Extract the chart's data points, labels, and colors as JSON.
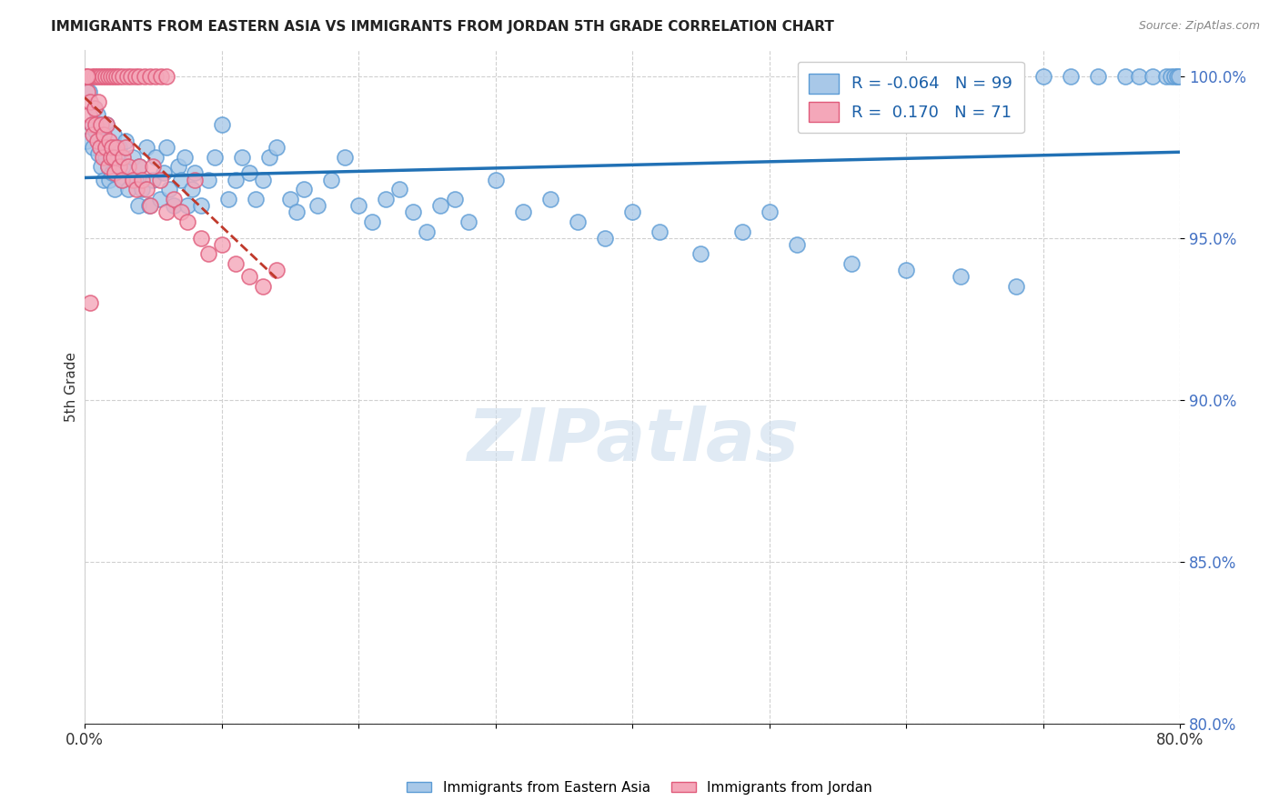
{
  "title": "IMMIGRANTS FROM EASTERN ASIA VS IMMIGRANTS FROM JORDAN 5TH GRADE CORRELATION CHART",
  "source": "Source: ZipAtlas.com",
  "ylabel": "5th Grade",
  "xlim": [
    0.0,
    0.8
  ],
  "ylim": [
    0.8,
    1.008
  ],
  "x_ticks": [
    0.0,
    0.1,
    0.2,
    0.3,
    0.4,
    0.5,
    0.6,
    0.7,
    0.8
  ],
  "x_tick_labels": [
    "0.0%",
    "",
    "",
    "",
    "",
    "",
    "",
    "",
    "80.0%"
  ],
  "y_ticks": [
    0.8,
    0.85,
    0.9,
    0.95,
    1.0
  ],
  "blue_color": "#a8c8e8",
  "blue_edge": "#5b9bd5",
  "pink_color": "#f4a7b9",
  "pink_edge": "#e05a7a",
  "trend_blue": "#2171b5",
  "trend_pink": "#c0392b",
  "blue_R": -0.064,
  "blue_N": 99,
  "pink_R": 0.17,
  "pink_N": 71,
  "watermark": "ZIPatlas",
  "blue_x": [
    0.001,
    0.003,
    0.005,
    0.006,
    0.007,
    0.008,
    0.009,
    0.01,
    0.011,
    0.012,
    0.013,
    0.014,
    0.015,
    0.016,
    0.017,
    0.018,
    0.019,
    0.02,
    0.021,
    0.022,
    0.023,
    0.025,
    0.027,
    0.028,
    0.03,
    0.032,
    0.035,
    0.037,
    0.039,
    0.04,
    0.042,
    0.045,
    0.047,
    0.05,
    0.052,
    0.055,
    0.058,
    0.06,
    0.062,
    0.065,
    0.068,
    0.07,
    0.073,
    0.075,
    0.078,
    0.08,
    0.085,
    0.09,
    0.095,
    0.1,
    0.105,
    0.11,
    0.115,
    0.12,
    0.125,
    0.13,
    0.135,
    0.14,
    0.15,
    0.155,
    0.16,
    0.17,
    0.18,
    0.19,
    0.2,
    0.21,
    0.22,
    0.23,
    0.24,
    0.25,
    0.26,
    0.27,
    0.28,
    0.3,
    0.32,
    0.34,
    0.36,
    0.38,
    0.4,
    0.42,
    0.45,
    0.48,
    0.5,
    0.52,
    0.56,
    0.6,
    0.64,
    0.68,
    0.7,
    0.72,
    0.74,
    0.76,
    0.77,
    0.78,
    0.79,
    0.793,
    0.796,
    0.798,
    0.799
  ],
  "blue_y": [
    0.98,
    0.995,
    0.985,
    0.978,
    0.99,
    0.983,
    0.988,
    0.976,
    0.985,
    0.972,
    0.98,
    0.968,
    0.975,
    0.985,
    0.972,
    0.968,
    0.978,
    0.97,
    0.982,
    0.965,
    0.975,
    0.978,
    0.968,
    0.972,
    0.98,
    0.965,
    0.975,
    0.968,
    0.96,
    0.972,
    0.965,
    0.978,
    0.96,
    0.968,
    0.975,
    0.962,
    0.97,
    0.978,
    0.965,
    0.96,
    0.972,
    0.968,
    0.975,
    0.96,
    0.965,
    0.97,
    0.96,
    0.968,
    0.975,
    0.985,
    0.962,
    0.968,
    0.975,
    0.97,
    0.962,
    0.968,
    0.975,
    0.978,
    0.962,
    0.958,
    0.965,
    0.96,
    0.968,
    0.975,
    0.96,
    0.955,
    0.962,
    0.965,
    0.958,
    0.952,
    0.96,
    0.962,
    0.955,
    0.968,
    0.958,
    0.962,
    0.955,
    0.95,
    0.958,
    0.952,
    0.945,
    0.952,
    0.958,
    0.948,
    0.942,
    0.94,
    0.938,
    0.935,
    1.0,
    1.0,
    1.0,
    1.0,
    1.0,
    1.0,
    1.0,
    1.0,
    1.0,
    1.0,
    1.0
  ],
  "pink_x": [
    0.002,
    0.003,
    0.004,
    0.005,
    0.006,
    0.007,
    0.008,
    0.009,
    0.01,
    0.011,
    0.012,
    0.013,
    0.014,
    0.015,
    0.016,
    0.017,
    0.018,
    0.019,
    0.02,
    0.021,
    0.022,
    0.023,
    0.025,
    0.027,
    0.028,
    0.03,
    0.032,
    0.035,
    0.038,
    0.04,
    0.042,
    0.045,
    0.048,
    0.05,
    0.055,
    0.06,
    0.065,
    0.07,
    0.075,
    0.08,
    0.085,
    0.09,
    0.1,
    0.11,
    0.12,
    0.13,
    0.14,
    0.005,
    0.007,
    0.009,
    0.011,
    0.013,
    0.015,
    0.017,
    0.019,
    0.021,
    0.023,
    0.025,
    0.028,
    0.031,
    0.034,
    0.037,
    0.04,
    0.044,
    0.048,
    0.052,
    0.056,
    0.06,
    0.001,
    0.002,
    0.004
  ],
  "pink_y": [
    0.995,
    0.988,
    0.992,
    0.985,
    0.982,
    0.99,
    0.985,
    0.98,
    0.992,
    0.978,
    0.985,
    0.975,
    0.982,
    0.978,
    0.985,
    0.972,
    0.98,
    0.975,
    0.978,
    0.975,
    0.97,
    0.978,
    0.972,
    0.968,
    0.975,
    0.978,
    0.972,
    0.968,
    0.965,
    0.972,
    0.968,
    0.965,
    0.96,
    0.972,
    0.968,
    0.958,
    0.962,
    0.958,
    0.955,
    0.968,
    0.95,
    0.945,
    0.948,
    0.942,
    0.938,
    0.935,
    0.94,
    1.0,
    1.0,
    1.0,
    1.0,
    1.0,
    1.0,
    1.0,
    1.0,
    1.0,
    1.0,
    1.0,
    1.0,
    1.0,
    1.0,
    1.0,
    1.0,
    1.0,
    1.0,
    1.0,
    1.0,
    1.0,
    1.0,
    1.0,
    0.93
  ]
}
